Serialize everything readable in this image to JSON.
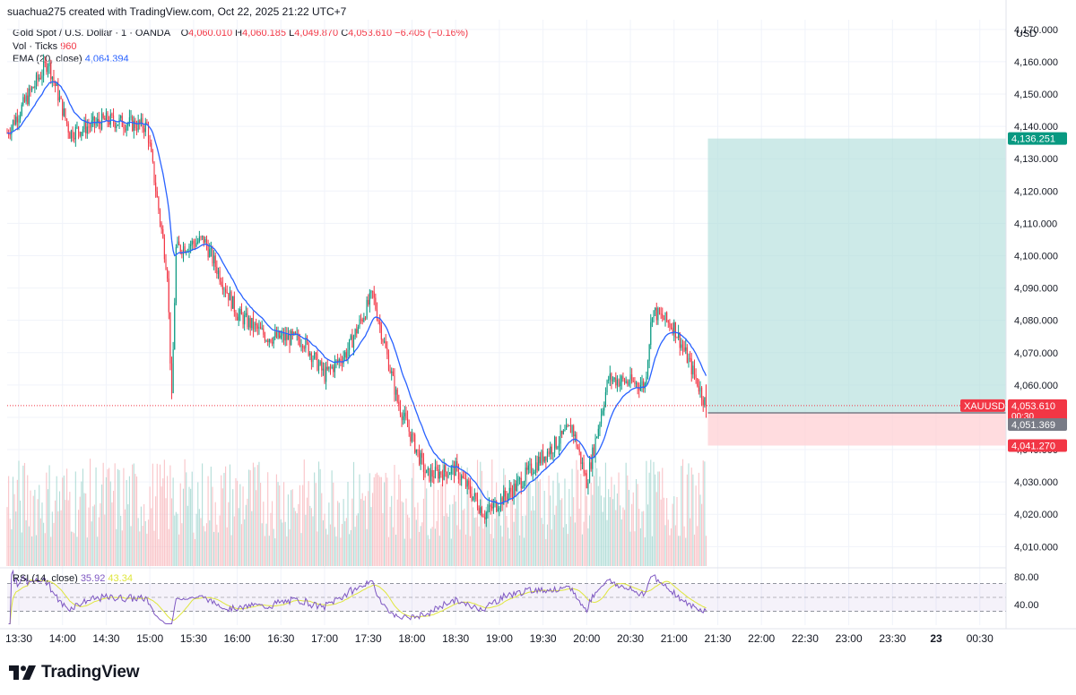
{
  "header": {
    "created_by": "suachua275 created with TradingView.com, Oct 22, 2025 21:22 UTC+7"
  },
  "legend": {
    "symbol": "Gold Spot / U.S. Dollar · 1 · OANDA",
    "open_label": "O",
    "open": "4,060.010",
    "high_label": "H",
    "high": "4,060.185",
    "low_label": "L",
    "low": "4,049.870",
    "close_label": "C",
    "close": "4,053.610",
    "change": "−6.405 (−0.16%)",
    "vol_label": "Vol · Ticks",
    "vol_value": "960",
    "ema_label": "EMA (20, close)",
    "ema_value": "4,064.394"
  },
  "rsi_legend": {
    "label": "RSI (14, close)",
    "rsi_value": "35.92",
    "ma_value": "43.34"
  },
  "price_axis": {
    "currency": "USD",
    "ticks": [
      "4,170.000",
      "4,160.000",
      "4,150.000",
      "4,140.000",
      "4,130.000",
      "4,120.000",
      "4,110.000",
      "4,100.000",
      "4,090.000",
      "4,080.000",
      "4,070.000",
      "4,060.000",
      "4,050.000",
      "4,040.000",
      "4,030.000",
      "4,020.000",
      "4,010.000"
    ]
  },
  "rsi_axis": {
    "ticks": [
      "80.00",
      "40.00"
    ]
  },
  "price_badges": {
    "target": "4,136.251",
    "symbol_tag": "XAUUSD",
    "last": "4,053.610",
    "countdown": "00:30",
    "entry": "4,051.369",
    "stop": "4,041.270"
  },
  "time_axis": {
    "ticks": [
      "13:30",
      "14:00",
      "14:30",
      "15:00",
      "15:30",
      "16:00",
      "16:30",
      "17:00",
      "17:30",
      "18:00",
      "18:30",
      "19:00",
      "19:30",
      "20:00",
      "20:30",
      "21:00",
      "21:30",
      "22:00",
      "22:30",
      "23:00",
      "23:30",
      "23",
      "00:30"
    ],
    "bold": [
      "23"
    ]
  },
  "footer": {
    "brand": "TradingView"
  },
  "colors": {
    "up": "#089981",
    "down": "#f23645",
    "ema": "#2962ff",
    "rsi": "#7e57c2",
    "rsi_ma": "#dfe63d",
    "target_zone": "#b2dfdb",
    "stop_zone": "#ffcdd2",
    "badge_green": "#089981",
    "badge_red": "#f23645",
    "badge_gray": "#787b86"
  },
  "chart_data": {
    "type": "candlestick",
    "interval": "1 minute",
    "x_range": [
      "13:22",
      "00:48"
    ],
    "y_range": [
      4004,
      4173
    ],
    "y_ticks_step": 10,
    "last_bar_time": "21:22",
    "key_points": [
      {
        "time": "13:22",
        "price": 4138
      },
      {
        "time": "13:50",
        "price": 4160
      },
      {
        "time": "14:05",
        "price": 4138
      },
      {
        "time": "14:30",
        "price": 4142
      },
      {
        "time": "14:58",
        "price": 4140
      },
      {
        "time": "15:12",
        "price": 4095
      },
      {
        "time": "15:15",
        "price": 4055
      },
      {
        "time": "15:18",
        "price": 4102
      },
      {
        "time": "15:37",
        "price": 4105
      },
      {
        "time": "16:00",
        "price": 4082
      },
      {
        "time": "16:20",
        "price": 4075
      },
      {
        "time": "16:45",
        "price": 4074
      },
      {
        "time": "17:00",
        "price": 4063
      },
      {
        "time": "17:15",
        "price": 4070
      },
      {
        "time": "17:33",
        "price": 4088
      },
      {
        "time": "17:45",
        "price": 4065
      },
      {
        "time": "17:50",
        "price": 4055
      },
      {
        "time": "18:10",
        "price": 4032
      },
      {
        "time": "18:30",
        "price": 4034
      },
      {
        "time": "18:50",
        "price": 4020
      },
      {
        "time": "19:10",
        "price": 4028
      },
      {
        "time": "19:30",
        "price": 4038
      },
      {
        "time": "19:50",
        "price": 4047
      },
      {
        "time": "20:00",
        "price": 4030
      },
      {
        "time": "20:15",
        "price": 4062
      },
      {
        "time": "20:40",
        "price": 4060
      },
      {
        "time": "20:45",
        "price": 4083
      },
      {
        "time": "21:00",
        "price": 4078
      },
      {
        "time": "21:15",
        "price": 4062
      },
      {
        "time": "21:22",
        "price": 4053.61
      }
    ],
    "position": {
      "target": 4136.251,
      "entry": 4051.369,
      "stop": 4041.27,
      "start_time": "21:22"
    },
    "last_price": 4053.61,
    "rsi_levels": [
      70,
      50,
      30
    ]
  }
}
